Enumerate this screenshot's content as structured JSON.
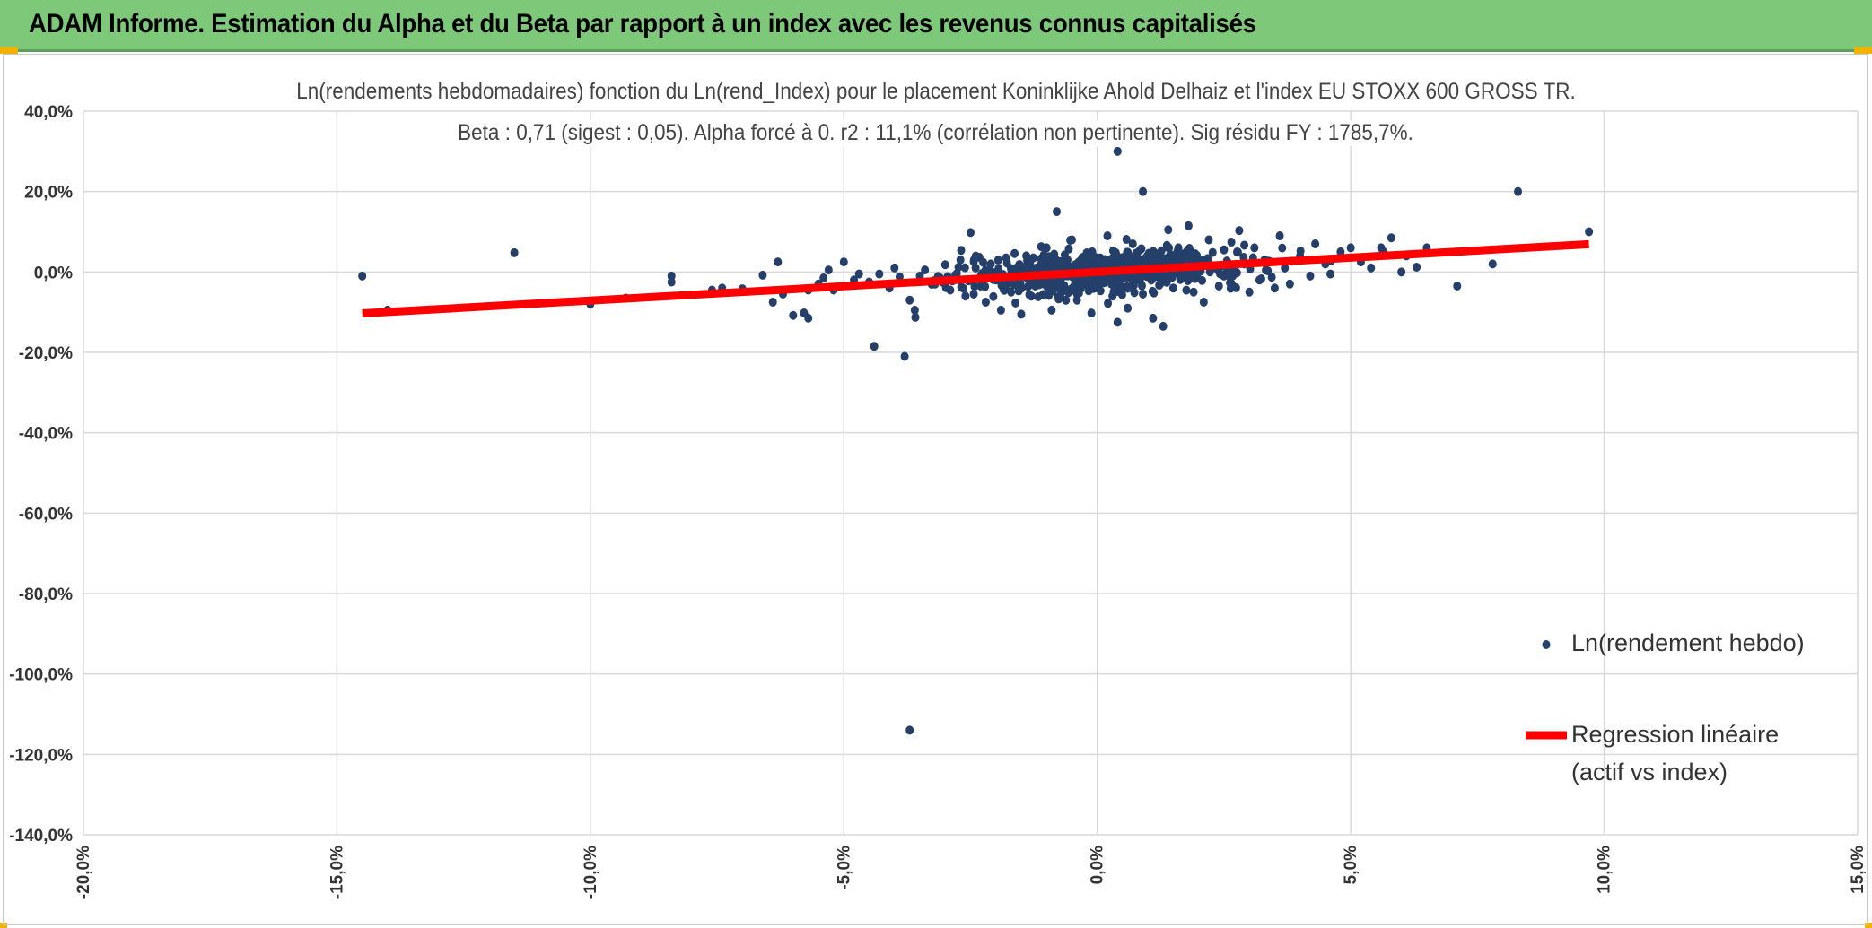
{
  "header": {
    "title": "ADAM Informe. Estimation du Alpha et du Beta par rapport à un index avec les revenus connus capitalisés"
  },
  "colors": {
    "header_bg": "#7ec87a",
    "points": "#253f6b",
    "regression": "#ff0000",
    "grid": "#d9d9d9"
  },
  "chart_data": {
    "type": "scatter",
    "title": "Ln(rendements hebdomadaires) fonction du Ln(rend_Index) pour le placement Koninklijke Ahold Delhaiz et l'index EU STOXX 600 GROSS TR.",
    "subtitle": "Beta : 0,71 (sigest : 0,05). Alpha forcé à 0. r2 : 11,1% (corrélation non pertinente). Sig résidu FY : 1785,7%.",
    "xlabel": "",
    "ylabel": "",
    "xlim": [
      -0.2,
      0.15
    ],
    "ylim": [
      -1.4,
      0.4
    ],
    "x_ticks": [
      -0.2,
      -0.15,
      -0.1,
      -0.05,
      0.0,
      0.05,
      0.1,
      0.15
    ],
    "x_tick_labels": [
      "-20,0%",
      "-15,0%",
      "-10,0%",
      "-5,0%",
      "0,0%",
      "5,0%",
      "10,0%",
      "15,0%"
    ],
    "y_ticks": [
      0.4,
      0.2,
      0.0,
      -0.2,
      -0.4,
      -0.6,
      -0.8,
      -1.0,
      -1.2,
      -1.4
    ],
    "y_tick_labels": [
      "40,0%",
      "20,0%",
      "0,0%",
      "-20,0%",
      "-40,0%",
      "-60,0%",
      "-80,0%",
      "-100,0%",
      "-120,0%",
      "-140,0%"
    ],
    "grid": true,
    "legend_position": "right",
    "series": [
      {
        "name": "Ln(rendement hebdo)",
        "kind": "scatter",
        "points": [
          [
            -0.145,
            -0.01
          ],
          [
            -0.14,
            -0.095
          ],
          [
            -0.115,
            0.048
          ],
          [
            -0.1,
            -0.075
          ],
          [
            -0.1,
            -0.08
          ],
          [
            -0.093,
            -0.065
          ],
          [
            -0.084,
            -0.025
          ],
          [
            -0.084,
            -0.01
          ],
          [
            -0.076,
            -0.045
          ],
          [
            -0.074,
            -0.04
          ],
          [
            -0.07,
            -0.042
          ],
          [
            -0.066,
            -0.008
          ],
          [
            -0.064,
            -0.075
          ],
          [
            -0.063,
            0.025
          ],
          [
            -0.062,
            -0.055
          ],
          [
            -0.06,
            -0.108
          ],
          [
            -0.057,
            -0.115
          ],
          [
            -0.057,
            -0.045
          ],
          [
            -0.055,
            -0.03
          ],
          [
            -0.054,
            -0.015
          ],
          [
            -0.053,
            0.005
          ],
          [
            -0.052,
            -0.045
          ],
          [
            -0.05,
            0.025
          ],
          [
            -0.048,
            -0.02
          ],
          [
            -0.047,
            -0.005
          ],
          [
            -0.045,
            -0.025
          ],
          [
            -0.044,
            -0.185
          ],
          [
            -0.043,
            -0.005
          ],
          [
            -0.041,
            -0.04
          ],
          [
            -0.04,
            0.01
          ],
          [
            -0.039,
            -0.012
          ],
          [
            -0.038,
            -0.21
          ],
          [
            -0.037,
            -0.07
          ],
          [
            -0.037,
            -1.14
          ],
          [
            -0.036,
            -0.095
          ],
          [
            -0.035,
            -0.01
          ],
          [
            -0.034,
            0.005
          ],
          [
            -0.032,
            -0.03
          ],
          [
            -0.031,
            -0.015
          ],
          [
            -0.03,
            0.018
          ],
          [
            -0.029,
            -0.045
          ],
          [
            -0.028,
            -0.008
          ],
          [
            -0.027,
            0.03
          ],
          [
            -0.026,
            -0.06
          ],
          [
            -0.025,
            0.098
          ],
          [
            -0.024,
            0.01
          ],
          [
            -0.023,
            -0.035
          ],
          [
            -0.022,
            -0.075
          ],
          [
            -0.021,
            0.02
          ],
          [
            -0.02,
            -0.02
          ],
          [
            -0.019,
            -0.095
          ],
          [
            -0.018,
            0.035
          ],
          [
            -0.017,
            -0.05
          ],
          [
            -0.016,
            0.0
          ],
          [
            -0.015,
            -0.105
          ],
          [
            -0.014,
            0.04
          ],
          [
            -0.013,
            -0.06
          ],
          [
            -0.012,
            0.01
          ],
          [
            -0.011,
            -0.025
          ],
          [
            -0.01,
            0.06
          ],
          [
            -0.009,
            -0.095
          ],
          [
            -0.008,
            0.15
          ],
          [
            -0.007,
            -0.04
          ],
          [
            -0.006,
            0.02
          ],
          [
            -0.005,
            0.08
          ],
          [
            -0.004,
            -0.07
          ],
          [
            -0.003,
            0.035
          ],
          [
            -0.002,
            -0.015
          ],
          [
            -0.001,
            0.05
          ],
          [
            0.0,
            -0.03
          ],
          [
            0.001,
            0.005
          ],
          [
            0.002,
            0.09
          ],
          [
            0.003,
            -0.06
          ],
          [
            0.004,
            0.3
          ],
          [
            0.004,
            -0.125
          ],
          [
            0.005,
            0.03
          ],
          [
            0.006,
            -0.09
          ],
          [
            0.007,
            0.07
          ],
          [
            0.008,
            -0.01
          ],
          [
            0.009,
            0.2
          ],
          [
            0.009,
            -0.055
          ],
          [
            0.01,
            0.04
          ],
          [
            0.011,
            -0.115
          ],
          [
            0.012,
            0.01
          ],
          [
            0.013,
            -0.135
          ],
          [
            0.014,
            0.105
          ],
          [
            0.015,
            -0.04
          ],
          [
            0.016,
            0.06
          ],
          [
            0.017,
            0.0
          ],
          [
            0.018,
            0.115
          ],
          [
            0.019,
            -0.05
          ],
          [
            0.02,
            0.03
          ],
          [
            0.021,
            -0.075
          ],
          [
            0.022,
            0.08
          ],
          [
            0.023,
            0.015
          ],
          [
            0.024,
            -0.035
          ],
          [
            0.025,
            0.055
          ],
          [
            0.026,
            -0.01
          ],
          [
            0.028,
            0.103
          ],
          [
            0.029,
            0.02
          ],
          [
            0.03,
            -0.05
          ],
          [
            0.031,
            0.06
          ],
          [
            0.032,
            -0.02
          ],
          [
            0.033,
            0.03
          ],
          [
            0.035,
            -0.04
          ],
          [
            0.036,
            0.09
          ],
          [
            0.037,
            0.01
          ],
          [
            0.038,
            -0.03
          ],
          [
            0.04,
            0.04
          ],
          [
            0.042,
            -0.01
          ],
          [
            0.043,
            0.07
          ],
          [
            0.045,
            0.02
          ],
          [
            0.046,
            -0.005
          ],
          [
            0.048,
            0.05
          ],
          [
            0.05,
            0.06
          ],
          [
            0.052,
            0.025
          ],
          [
            0.054,
            0.01
          ],
          [
            0.056,
            0.06
          ],
          [
            0.058,
            0.085
          ],
          [
            0.06,
            0.0
          ],
          [
            0.061,
            0.04
          ],
          [
            0.063,
            0.012
          ],
          [
            0.065,
            0.06
          ],
          [
            0.071,
            -0.035
          ],
          [
            0.078,
            0.02
          ],
          [
            0.083,
            0.2
          ],
          [
            0.097,
            0.1
          ]
        ]
      },
      {
        "name": "Regression linéaire (actif vs index)",
        "kind": "line",
        "x": [
          -0.145,
          0.097
        ],
        "y": [
          -0.103,
          0.069
        ]
      }
    ],
    "legend": {
      "scatter_label": "Ln(rendement hebdo)",
      "line_label_1": "Regression linéaire",
      "line_label_2": "(actif vs index)"
    }
  }
}
